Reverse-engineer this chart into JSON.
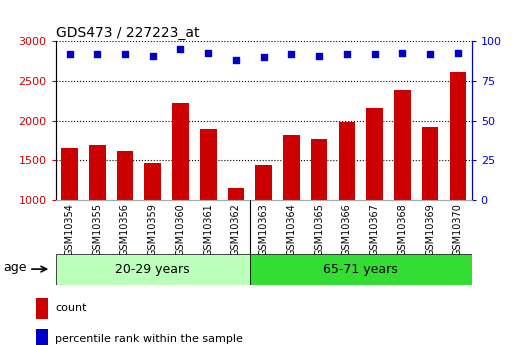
{
  "title": "GDS473 / 227223_at",
  "samples": [
    "GSM10354",
    "GSM10355",
    "GSM10356",
    "GSM10359",
    "GSM10360",
    "GSM10361",
    "GSM10362",
    "GSM10363",
    "GSM10364",
    "GSM10365",
    "GSM10366",
    "GSM10367",
    "GSM10368",
    "GSM10369",
    "GSM10370"
  ],
  "counts": [
    1660,
    1700,
    1620,
    1470,
    2220,
    1900,
    1150,
    1440,
    1820,
    1770,
    1990,
    2160,
    2390,
    1920,
    2610
  ],
  "percentile_ranks": [
    92,
    92,
    92,
    91,
    95,
    93,
    88,
    90,
    92,
    91,
    92,
    92,
    93,
    92,
    93
  ],
  "ylim_left": [
    1000,
    3000
  ],
  "ylim_right": [
    0,
    100
  ],
  "yticks_left": [
    1000,
    1500,
    2000,
    2500,
    3000
  ],
  "yticks_right": [
    0,
    25,
    50,
    75,
    100
  ],
  "bar_color": "#cc0000",
  "dot_color": "#0000cc",
  "group1_label": "20-29 years",
  "group2_label": "65-71 years",
  "group1_count": 7,
  "group2_count": 8,
  "group1_bg": "#bbffbb",
  "group2_bg": "#33dd33",
  "xlabel_area_bg": "#c8c8c8",
  "age_label": "age",
  "legend_count": "count",
  "legend_pct": "percentile rank within the sample",
  "title_fontsize": 10,
  "axis_fontsize": 8,
  "label_fontsize": 7,
  "group_fontsize": 9
}
